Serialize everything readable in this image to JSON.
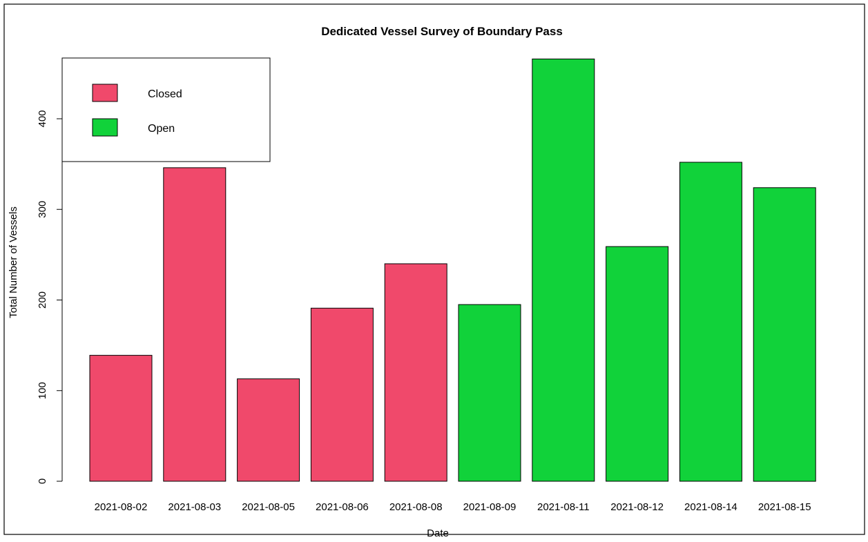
{
  "chart_data": {
    "type": "bar",
    "title": "Dedicated Vessel Survey of Boundary Pass",
    "xlabel": "Date",
    "ylabel": "Total Number of Vessels",
    "categories": [
      "2021-08-02",
      "2021-08-03",
      "2021-08-05",
      "2021-08-06",
      "2021-08-08",
      "2021-08-09",
      "2021-08-11",
      "2021-08-12",
      "2021-08-14",
      "2021-08-15"
    ],
    "values": [
      139,
      346,
      113,
      191,
      240,
      195,
      466,
      259,
      352,
      324
    ],
    "groups": [
      "Closed",
      "Closed",
      "Closed",
      "Closed",
      "Closed",
      "Open",
      "Open",
      "Open",
      "Open",
      "Open"
    ],
    "ylim": [
      0,
      466
    ],
    "yticks": [
      0,
      100,
      200,
      300,
      400
    ],
    "grid": false,
    "legend": {
      "placement": "top-left",
      "entries": [
        {
          "label": "Closed",
          "color": "#f0496b"
        },
        {
          "label": "Open",
          "color": "#11d23a"
        }
      ]
    },
    "colors": {
      "Closed": "#f0496b",
      "Open": "#11d23a"
    }
  }
}
